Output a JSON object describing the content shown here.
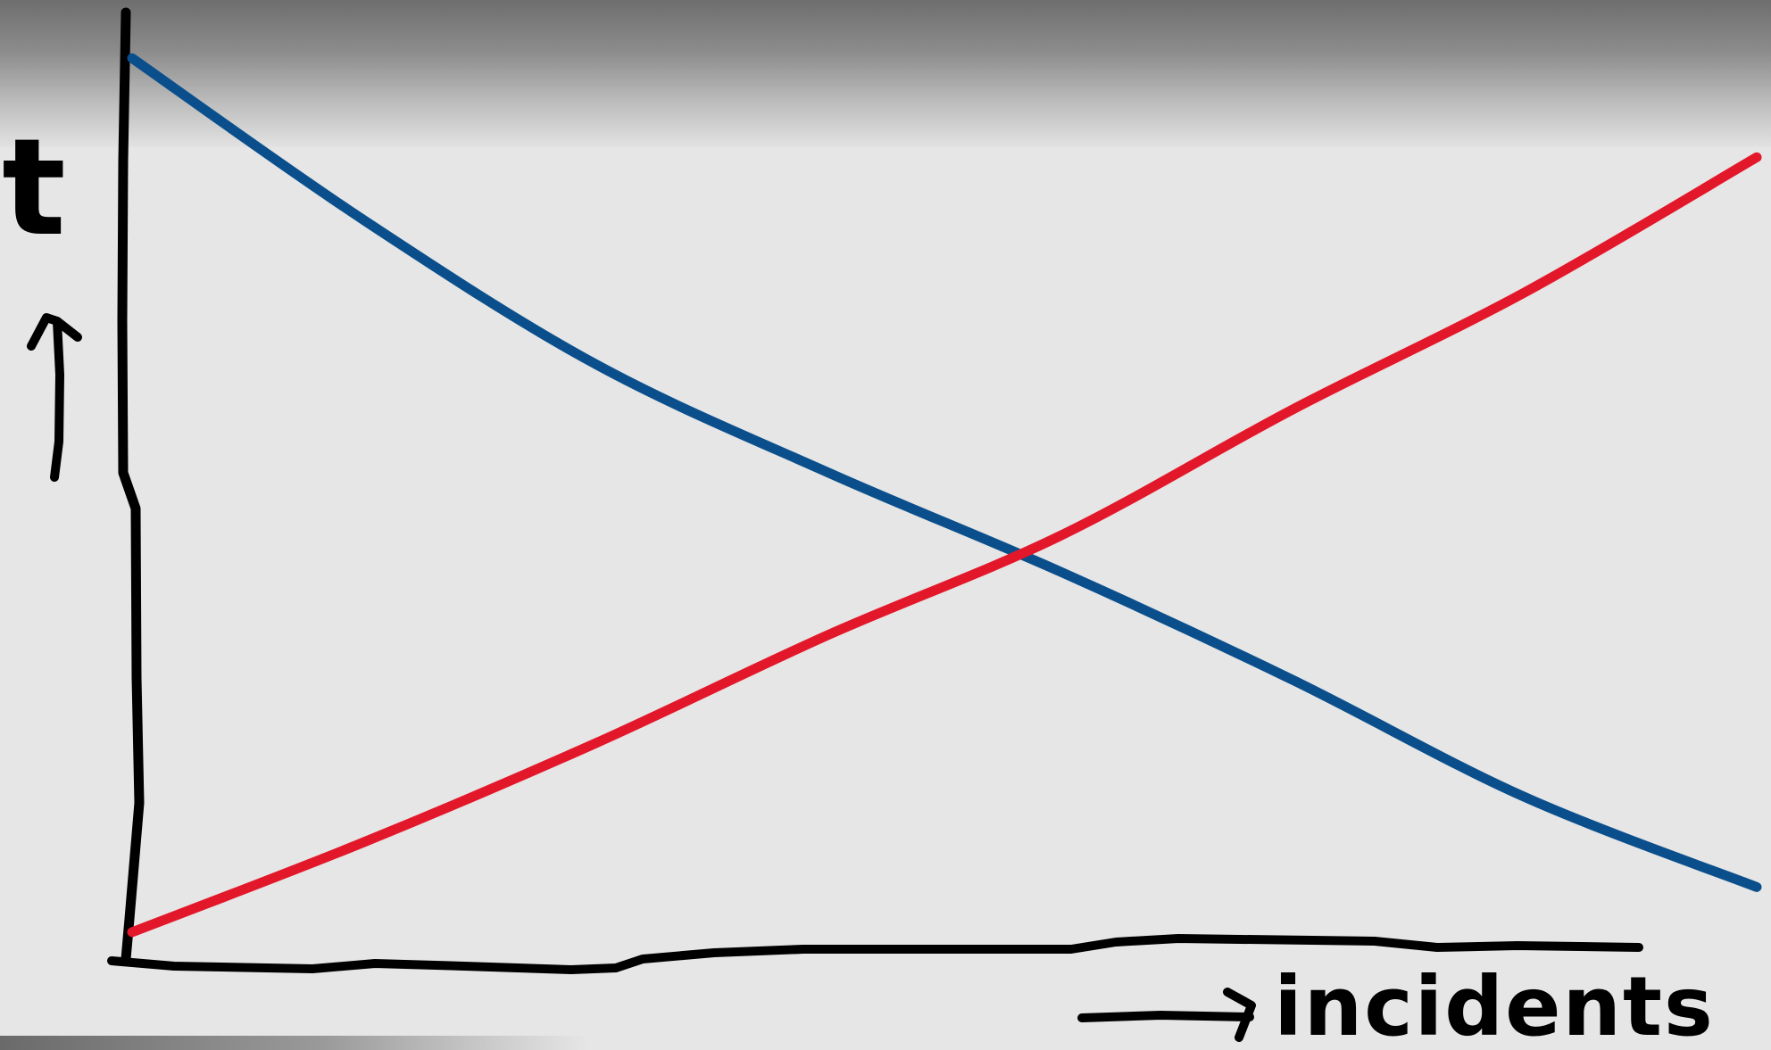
{
  "chart_data": {
    "type": "line",
    "style": "hand-drawn",
    "title": "",
    "xlabel": "incidents",
    "ylabel": "t",
    "grid": false,
    "legend": "none",
    "series": [
      {
        "color": "#0a4f8c",
        "trend": "decreasing",
        "values": [
          [
            0,
            0.98
          ],
          [
            1,
            0.8
          ],
          [
            2,
            0.64
          ],
          [
            3,
            0.52
          ],
          [
            4,
            0.41
          ],
          [
            5,
            0.29
          ],
          [
            6,
            0.16
          ],
          [
            7,
            0.06
          ]
        ]
      },
      {
        "color": "#e3172a",
        "trend": "increasing",
        "values": [
          [
            0,
            0.01
          ],
          [
            1,
            0.11
          ],
          [
            2,
            0.22
          ],
          [
            3,
            0.34
          ],
          [
            4,
            0.45
          ],
          [
            5,
            0.59
          ],
          [
            6,
            0.72
          ],
          [
            7,
            0.87
          ]
        ]
      }
    ]
  }
}
